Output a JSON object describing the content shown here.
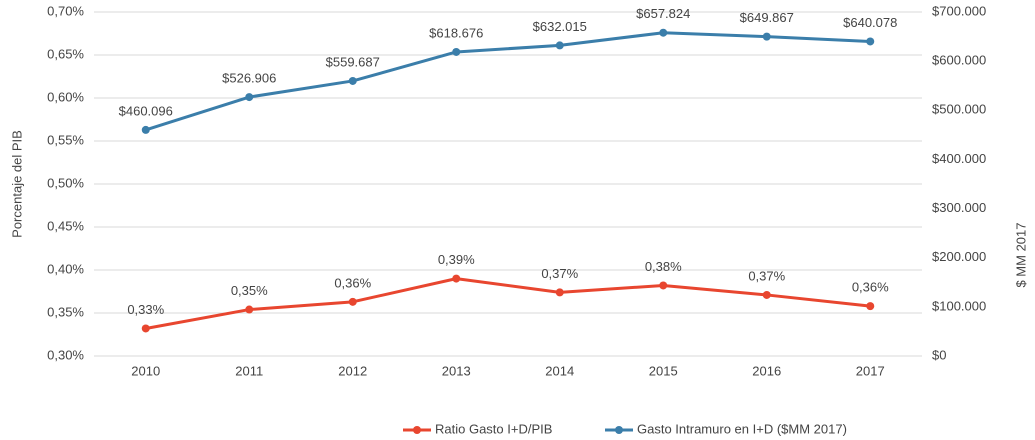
{
  "chart_data": {
    "type": "line",
    "categories": [
      "2010",
      "2011",
      "2012",
      "2013",
      "2014",
      "2015",
      "2016",
      "2017"
    ],
    "ylabel": "Porcentaje del PIB",
    "y2label": "$ MM 2017",
    "ylim": [
      0.3,
      0.7
    ],
    "yticks": [
      {
        "value": 0.3,
        "label": "0,30%"
      },
      {
        "value": 0.35,
        "label": "0,35%"
      },
      {
        "value": 0.4,
        "label": "0,40%"
      },
      {
        "value": 0.45,
        "label": "0,45%"
      },
      {
        "value": 0.5,
        "label": "0,50%"
      },
      {
        "value": 0.55,
        "label": "0,55%"
      },
      {
        "value": 0.6,
        "label": "0,60%"
      },
      {
        "value": 0.65,
        "label": "0,65%"
      },
      {
        "value": 0.7,
        "label": "0,70%"
      }
    ],
    "y2lim": [
      0,
      700000
    ],
    "y2ticks": [
      {
        "value": 0,
        "label": "$0"
      },
      {
        "value": 100000,
        "label": "$100.000"
      },
      {
        "value": 200000,
        "label": "$200.000"
      },
      {
        "value": 300000,
        "label": "$300.000"
      },
      {
        "value": 400000,
        "label": "$400.000"
      },
      {
        "value": 500000,
        "label": "$500.000"
      },
      {
        "value": 600000,
        "label": "$600.000"
      },
      {
        "value": 700000,
        "label": "$700.000"
      }
    ],
    "grid": true,
    "legend": "bottom",
    "series": [
      {
        "name": "Ratio Gasto I+D/PIB",
        "color": "#e8462f",
        "values": [
          0.332,
          0.354,
          0.363,
          0.39,
          0.374,
          0.382,
          0.371,
          0.358
        ],
        "value_labels": [
          "0,33%",
          "0,35%",
          "0,36%",
          "0,39%",
          "0,37%",
          "0,38%",
          "0,37%",
          "0,36%"
        ]
      },
      {
        "name": "Gasto Intramuro en I+D ($MM 2017)",
        "color": "#3b7eaa",
        "axis": "y2",
        "values": [
          460096,
          526906,
          559687,
          618676,
          632015,
          657824,
          649867,
          640078
        ],
        "value_labels": [
          "$460.096",
          "$526.906",
          "$559.687",
          "$618.676",
          "$632.015",
          "$657.824",
          "$649.867",
          "$640.078"
        ]
      }
    ]
  }
}
